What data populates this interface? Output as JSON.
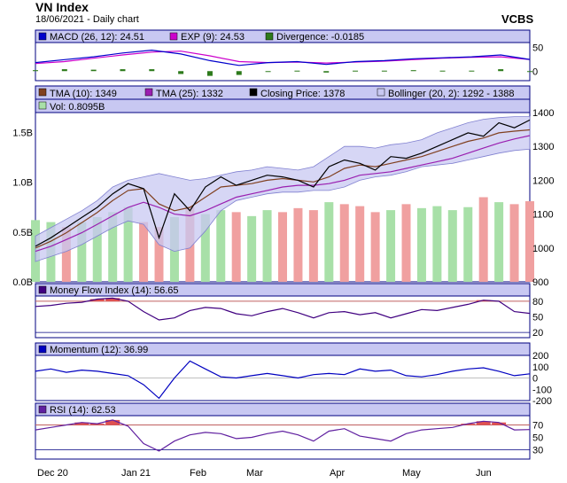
{
  "header": {
    "title": "VN Index",
    "subtitle": "18/06/2021 - Daily chart",
    "brand": "VCBS"
  },
  "colors": {
    "frame": "#000080",
    "legend_bg": "#c8c8f2",
    "plot_bg": "#ffffff",
    "macd": "#0000cc",
    "exp": "#cc00cc",
    "divergence": "#2d7a1b",
    "tma10": "#804020",
    "tma25": "#9a1fb0",
    "close": "#000000",
    "bollinger_fill": "#c8c8f2",
    "bollinger_line": "#8080d0",
    "vol_up": "#a8e0a8",
    "vol_down": "#f0a0a0",
    "mfi": "#400080",
    "mfi_fill": "#e05050",
    "momentum": "#0000c0",
    "rsi": "#6020a0",
    "ref_line": "#c06060"
  },
  "x_axis": {
    "labels": [
      "Dec 20",
      "Jan 21",
      "Feb",
      "Mar",
      "Apr",
      "May",
      "Jun"
    ]
  },
  "chart_data": [
    {
      "type": "line",
      "panel": "macd",
      "series": [
        {
          "name": "MACD (26, 12): 24.51",
          "values": [
            18,
            24,
            30,
            38,
            44,
            36,
            22,
            12,
            18,
            20,
            14,
            20,
            22,
            26,
            28,
            30,
            34,
            24.51
          ]
        },
        {
          "name": "EXP (9): 24.53",
          "values": [
            16,
            20,
            27,
            34,
            40,
            42,
            32,
            20,
            18,
            19,
            17,
            19,
            21,
            24,
            27,
            29,
            30,
            24.53
          ]
        },
        {
          "name": "Divergence: -0.0185",
          "values": [
            2,
            4,
            3,
            4,
            4,
            -6,
            -10,
            -8,
            0,
            1,
            -3,
            1,
            1,
            2,
            1,
            1,
            4,
            -0.0185
          ]
        }
      ],
      "ylim": [
        -20,
        60
      ],
      "yticks": [
        "50",
        "0"
      ]
    },
    {
      "type": "line",
      "panel": "price",
      "legend": [
        "TMA (10): 1349",
        "TMA (25): 1332",
        "Closing Price: 1378",
        "Bollinger (20, 2): 1292 - 1388",
        "Vol: 0.8095B"
      ],
      "close": [
        1005,
        1030,
        1060,
        1090,
        1120,
        1160,
        1190,
        1175,
        1030,
        1160,
        1110,
        1180,
        1210,
        1185,
        1200,
        1215,
        1210,
        1200,
        1180,
        1240,
        1260,
        1250,
        1230,
        1270,
        1265,
        1280,
        1300,
        1320,
        1340,
        1330,
        1370,
        1355,
        1378
      ],
      "tma10": [
        1000,
        1020,
        1045,
        1075,
        1105,
        1140,
        1170,
        1175,
        1130,
        1110,
        1120,
        1150,
        1180,
        1185,
        1190,
        1200,
        1205,
        1200,
        1195,
        1210,
        1235,
        1245,
        1240,
        1250,
        1260,
        1270,
        1285,
        1300,
        1315,
        1325,
        1340,
        1345,
        1349
      ],
      "tma25": [
        990,
        1005,
        1025,
        1045,
        1070,
        1095,
        1120,
        1135,
        1120,
        1100,
        1095,
        1110,
        1130,
        1150,
        1160,
        1170,
        1180,
        1185,
        1185,
        1190,
        1200,
        1215,
        1220,
        1225,
        1235,
        1245,
        1255,
        1265,
        1280,
        1295,
        1310,
        1322,
        1332
      ],
      "boll_upper": [
        1035,
        1060,
        1085,
        1110,
        1140,
        1180,
        1200,
        1210,
        1220,
        1210,
        1200,
        1205,
        1215,
        1225,
        1230,
        1240,
        1235,
        1230,
        1240,
        1270,
        1300,
        1300,
        1295,
        1305,
        1310,
        1320,
        1340,
        1355,
        1370,
        1380,
        1385,
        1388,
        1388
      ],
      "boll_lower": [
        960,
        975,
        990,
        1010,
        1035,
        1060,
        1080,
        1070,
        1010,
        990,
        1000,
        1050,
        1110,
        1140,
        1150,
        1160,
        1165,
        1165,
        1170,
        1170,
        1180,
        1200,
        1210,
        1215,
        1225,
        1240,
        1245,
        1250,
        1260,
        1270,
        1280,
        1288,
        1292
      ],
      "volume": [
        0.62,
        0.6,
        0.55,
        0.6,
        0.65,
        0.7,
        0.75,
        0.6,
        0.55,
        0.65,
        0.75,
        0.68,
        0.72,
        0.7,
        0.66,
        0.72,
        0.7,
        0.74,
        0.72,
        0.8,
        0.78,
        0.76,
        0.7,
        0.72,
        0.78,
        0.74,
        0.76,
        0.72,
        0.75,
        0.85,
        0.8,
        0.78,
        0.8095
      ],
      "volume_down": [
        false,
        false,
        true,
        false,
        false,
        false,
        false,
        true,
        true,
        false,
        true,
        false,
        false,
        true,
        false,
        false,
        true,
        true,
        true,
        false,
        true,
        true,
        true,
        false,
        true,
        false,
        false,
        false,
        false,
        true,
        false,
        true,
        true
      ],
      "price_ylim": [
        900,
        1400
      ],
      "price_yticks": [
        "1400",
        "1300",
        "1200",
        "1100",
        "1000",
        "900"
      ],
      "vol_ylim": [
        0,
        1.7
      ],
      "vol_yticks": [
        "1.5B",
        "1.0B",
        "0.5B",
        "0.0B"
      ]
    },
    {
      "type": "line",
      "panel": "mfi",
      "series": [
        {
          "name": "Money Flow Index (14): 56.65",
          "values": [
            70,
            72,
            76,
            78,
            84,
            86,
            80,
            60,
            44,
            48,
            62,
            68,
            66,
            56,
            52,
            60,
            66,
            58,
            48,
            58,
            60,
            54,
            58,
            48,
            56,
            64,
            62,
            68,
            74,
            82,
            80,
            60,
            56.65
          ]
        }
      ],
      "ylim": [
        10,
        90
      ],
      "yticks": [
        "80",
        "50",
        "20"
      ]
    },
    {
      "type": "line",
      "panel": "momentum",
      "series": [
        {
          "name": "Momentum (12): 36.99",
          "values": [
            60,
            80,
            50,
            70,
            60,
            40,
            20,
            -60,
            -180,
            0,
            150,
            80,
            10,
            0,
            20,
            40,
            20,
            0,
            30,
            40,
            30,
            80,
            60,
            70,
            20,
            10,
            30,
            60,
            80,
            90,
            60,
            20,
            36.99
          ]
        }
      ],
      "ylim": [
        -200,
        200
      ],
      "yticks": [
        "200",
        "100",
        "0",
        "-100",
        "-200"
      ]
    },
    {
      "type": "line",
      "panel": "rsi",
      "series": [
        {
          "name": "RSI (14): 62.53",
          "values": [
            62,
            66,
            70,
            74,
            72,
            78,
            68,
            40,
            28,
            44,
            54,
            58,
            56,
            48,
            50,
            56,
            60,
            54,
            44,
            60,
            64,
            52,
            48,
            44,
            56,
            62,
            64,
            66,
            72,
            76,
            74,
            62,
            62.53
          ]
        }
      ],
      "ylim": [
        15,
        85
      ],
      "yticks": [
        "70",
        "50",
        "30"
      ]
    }
  ]
}
